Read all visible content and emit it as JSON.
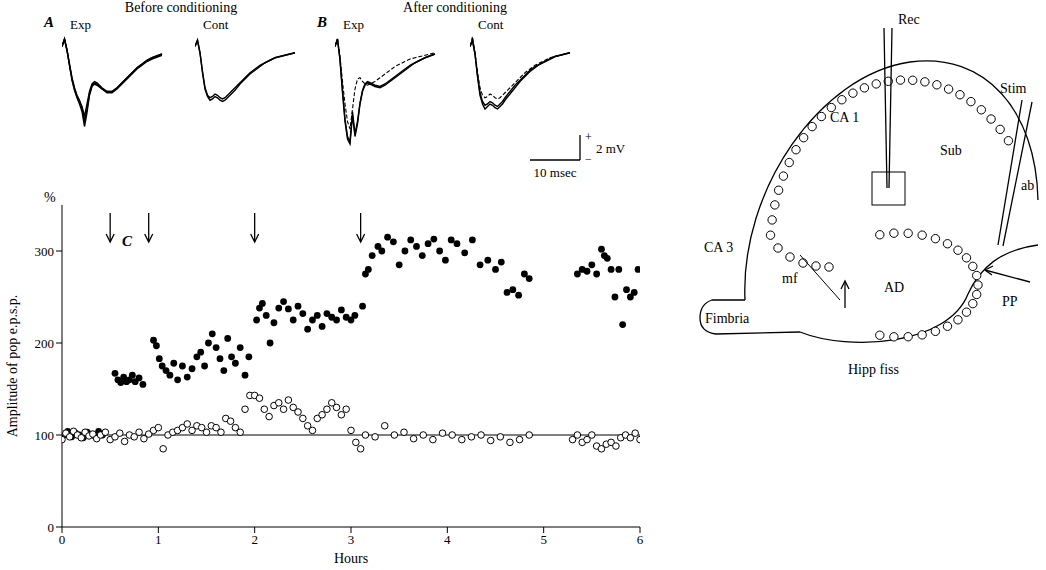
{
  "chart_data": [
    {
      "type": "line",
      "panel": "A",
      "title": "Before conditioning",
      "subtitle": "Exp",
      "tick_labels": false,
      "xlim": [
        0,
        21
      ],
      "ylim": [
        -8,
        1
      ],
      "x": [
        0,
        0.5,
        1,
        1.5,
        2,
        2.5,
        3,
        3.5,
        4,
        4.5,
        5,
        5.5,
        6,
        6.5,
        7,
        8,
        9,
        10,
        11,
        12,
        13,
        14,
        15,
        16,
        17,
        18,
        20
      ],
      "series": [
        {
          "color": "#000000",
          "line_style": "solid",
          "values": [
            0,
            0.6,
            -0.3,
            -1.5,
            -2.6,
            -3.4,
            -4.0,
            -4.4,
            -4.8,
            -5.6,
            -4.6,
            -3.6,
            -3.0,
            -2.8,
            -2.9,
            -3.3,
            -3.6,
            -3.6,
            -3.3,
            -2.9,
            -2.5,
            -2.1,
            -1.7,
            -1.4,
            -1.1,
            -0.9,
            -0.6
          ]
        },
        {
          "color": "#000000",
          "line_style": "solid",
          "values": [
            0,
            0.6,
            -0.3,
            -1.4,
            -2.5,
            -3.3,
            -3.9,
            -4.3,
            -4.9,
            -6.0,
            -5.0,
            -3.8,
            -3.1,
            -2.9,
            -3.0,
            -3.4,
            -3.6,
            -3.6,
            -3.3,
            -2.9,
            -2.5,
            -2.1,
            -1.7,
            -1.4,
            -1.1,
            -0.9,
            -0.6
          ]
        },
        {
          "color": "#000000",
          "line_style": "solid",
          "values": [
            0,
            0.6,
            -0.3,
            -1.5,
            -2.7,
            -3.5,
            -4.1,
            -4.6,
            -5.2,
            -6.4,
            -5.3,
            -3.9,
            -3.2,
            -3.0,
            -3.1,
            -3.4,
            -3.7,
            -3.7,
            -3.4,
            -3.0,
            -2.6,
            -2.2,
            -1.8,
            -1.5,
            -1.2,
            -1.0,
            -0.7
          ]
        }
      ]
    },
    {
      "type": "line",
      "subtitle": "Cont",
      "tick_labels": false,
      "xlim": [
        0,
        21
      ],
      "ylim": [
        -8,
        1
      ],
      "x": [
        0,
        0.5,
        1,
        1.5,
        2,
        2.5,
        3,
        3.5,
        4,
        4.5,
        5,
        5.5,
        6,
        6.5,
        7,
        8,
        9,
        10,
        11,
        12,
        13,
        14,
        15,
        16,
        17,
        18,
        20
      ],
      "series": [
        {
          "color": "#000000",
          "line_style": "solid",
          "values": [
            0,
            0.5,
            -0.5,
            -2.0,
            -3.3,
            -3.9,
            -4.1,
            -4.0,
            -3.8,
            -3.9,
            -4.1,
            -4.2,
            -4.1,
            -3.9,
            -3.7,
            -3.3,
            -2.9,
            -2.5,
            -2.1,
            -1.8,
            -1.5,
            -1.3,
            -1.1,
            -0.9,
            -0.8,
            -0.7,
            -0.5
          ]
        },
        {
          "color": "#000000",
          "line_style": "solid",
          "values": [
            0,
            0.5,
            -0.5,
            -2.1,
            -3.4,
            -4.0,
            -4.3,
            -4.2,
            -4.0,
            -4.1,
            -4.3,
            -4.4,
            -4.3,
            -4.1,
            -3.9,
            -3.5,
            -3.0,
            -2.6,
            -2.2,
            -1.9,
            -1.6,
            -1.3,
            -1.1,
            -0.9,
            -0.8,
            -0.7,
            -0.5
          ]
        }
      ]
    },
    {
      "type": "line",
      "panel": "B",
      "title": "After conditioning",
      "subtitle": "Exp",
      "tick_labels": false,
      "xlim": [
        0,
        21
      ],
      "ylim": [
        -8,
        1
      ],
      "x": [
        0,
        0.5,
        1,
        1.5,
        2,
        2.5,
        3,
        3.5,
        4,
        4.5,
        5,
        5.5,
        6,
        6.5,
        7,
        8,
        9,
        10,
        11,
        12,
        13,
        14,
        15,
        16,
        17,
        18,
        20
      ],
      "series": [
        {
          "color": "#000000",
          "line_style": "solid",
          "values": [
            0,
            0.6,
            -1.0,
            -3.5,
            -5.8,
            -7.2,
            -7.6,
            -5.2,
            -7.0,
            -6.0,
            -4.5,
            -3.5,
            -3.0,
            -2.8,
            -2.9,
            -3.1,
            -3.2,
            -3.0,
            -2.7,
            -2.4,
            -2.1,
            -1.8,
            -1.5,
            -1.3,
            -1.1,
            -0.9,
            -0.6
          ]
        },
        {
          "color": "#000000",
          "line_style": "solid",
          "values": [
            0,
            0.6,
            -1.1,
            -3.7,
            -6.0,
            -7.4,
            -7.8,
            -5.5,
            -7.2,
            -6.2,
            -4.6,
            -3.6,
            -3.1,
            -2.9,
            -3.0,
            -3.2,
            -3.3,
            -3.1,
            -2.8,
            -2.5,
            -2.2,
            -1.9,
            -1.6,
            -1.3,
            -1.1,
            -0.9,
            -0.6
          ]
        },
        {
          "color": "#000000",
          "line_style": "dashed",
          "values": [
            0,
            0.6,
            -0.8,
            -2.8,
            -4.6,
            -6.0,
            -6.6,
            -5.0,
            -3.4,
            -2.6,
            -2.5,
            -2.8,
            -3.0,
            -3.1,
            -3.0,
            -2.8,
            -2.5,
            -2.2,
            -1.9,
            -1.6,
            -1.4,
            -1.2,
            -1.0,
            -0.9,
            -0.8,
            -0.7,
            -0.5
          ]
        }
      ]
    },
    {
      "type": "line",
      "subtitle": "Cont",
      "tick_labels": false,
      "xlim": [
        0,
        21
      ],
      "ylim": [
        -8,
        1
      ],
      "x": [
        0,
        0.5,
        1,
        1.5,
        2,
        2.5,
        3,
        3.5,
        4,
        4.5,
        5,
        5.5,
        6,
        6.5,
        7,
        8,
        9,
        10,
        11,
        12,
        13,
        14,
        15,
        16,
        17,
        18,
        20
      ],
      "series": [
        {
          "color": "#000000",
          "line_style": "solid",
          "values": [
            0,
            0.5,
            -0.6,
            -2.3,
            -3.7,
            -4.4,
            -4.7,
            -4.6,
            -4.4,
            -4.5,
            -4.7,
            -4.8,
            -4.6,
            -4.4,
            -4.1,
            -3.6,
            -3.1,
            -2.7,
            -2.3,
            -1.9,
            -1.6,
            -1.4,
            -1.2,
            -1.0,
            -0.8,
            -0.7,
            -0.5
          ]
        },
        {
          "color": "#000000",
          "line_style": "solid",
          "values": [
            0,
            0.5,
            -0.6,
            -2.4,
            -3.9,
            -4.6,
            -5.0,
            -4.8,
            -4.6,
            -4.7,
            -4.9,
            -5.0,
            -4.8,
            -4.6,
            -4.3,
            -3.8,
            -3.3,
            -2.8,
            -2.4,
            -2.0,
            -1.7,
            -1.4,
            -1.2,
            -1.0,
            -0.8,
            -0.7,
            -0.5
          ]
        },
        {
          "color": "#000000",
          "line_style": "dashed",
          "values": [
            0,
            0.8,
            -0.5,
            -2.0,
            -3.3,
            -3.9,
            -4.1,
            -4.0,
            -3.8,
            -3.9,
            -4.1,
            -4.2,
            -4.1,
            -3.9,
            -3.7,
            -3.3,
            -2.9,
            -2.5,
            -2.1,
            -1.8,
            -1.5,
            -1.3,
            -1.1,
            -0.9,
            -0.8,
            -0.7,
            -0.5
          ]
        }
      ]
    },
    {
      "type": "scatter",
      "panel": "C",
      "xlabel": "Hours",
      "ylabel": "Amplitude of pop e.p.s.p.",
      "ylabel_unit": "%",
      "xlim": [
        0,
        6
      ],
      "xticks": [
        0,
        1,
        2,
        3,
        4,
        5,
        6
      ],
      "ylim": [
        0,
        350
      ],
      "yticks": [
        0,
        100,
        200,
        300
      ],
      "baseline": 100,
      "conditioning_times": [
        0.5,
        0.9,
        2.0,
        3.1
      ],
      "series": [
        {
          "color": "#000000",
          "marker": "circle",
          "x": [
            0.02,
            0.06,
            0.1,
            0.14,
            0.18,
            0.22,
            0.26,
            0.3,
            0.34,
            0.38,
            0.42,
            0.55,
            0.58,
            0.61,
            0.64,
            0.67,
            0.7,
            0.73,
            0.76,
            0.8,
            0.84,
            0.95,
            0.98,
            1.01,
            1.04,
            1.08,
            1.12,
            1.16,
            1.2,
            1.25,
            1.3,
            1.35,
            1.4,
            1.44,
            1.48,
            1.52,
            1.56,
            1.6,
            1.64,
            1.68,
            1.72,
            1.76,
            1.8,
            1.85,
            1.9,
            1.94,
            2.02,
            2.05,
            2.08,
            2.12,
            2.16,
            2.2,
            2.25,
            2.3,
            2.35,
            2.4,
            2.45,
            2.5,
            2.55,
            2.6,
            2.65,
            2.7,
            2.75,
            2.8,
            2.85,
            2.9,
            2.95,
            3.0,
            3.04,
            3.12,
            3.15,
            3.18,
            3.22,
            3.28,
            3.32,
            3.38,
            3.44,
            3.5,
            3.56,
            3.62,
            3.68,
            3.74,
            3.8,
            3.86,
            3.92,
            3.98,
            4.04,
            4.1,
            4.18,
            4.26,
            4.34,
            4.42,
            4.5,
            4.56,
            4.62,
            4.68,
            4.74,
            4.8,
            4.85,
            5.35,
            5.4,
            5.45,
            5.5,
            5.55,
            5.6,
            5.63,
            5.66,
            5.7,
            5.74,
            5.78,
            5.82,
            5.86,
            5.9,
            5.94,
            5.98
          ],
          "values": [
            100,
            104,
            98,
            102,
            100,
            97,
            103,
            101,
            99,
            104,
            100,
            167,
            160,
            157,
            163,
            158,
            160,
            165,
            158,
            162,
            155,
            203,
            197,
            183,
            175,
            170,
            165,
            178,
            160,
            175,
            163,
            172,
            185,
            190,
            175,
            200,
            210,
            195,
            183,
            170,
            205,
            185,
            178,
            195,
            165,
            185,
            225,
            238,
            243,
            230,
            200,
            222,
            238,
            245,
            237,
            225,
            240,
            232,
            215,
            225,
            230,
            218,
            232,
            228,
            225,
            236,
            228,
            225,
            230,
            240,
            275,
            280,
            295,
            305,
            300,
            315,
            310,
            285,
            300,
            312,
            305,
            295,
            308,
            313,
            300,
            290,
            312,
            308,
            298,
            312,
            285,
            290,
            280,
            288,
            255,
            258,
            252,
            275,
            270,
            275,
            280,
            278,
            285,
            275,
            302,
            295,
            292,
            280,
            250,
            280,
            220,
            258,
            250,
            255,
            280
          ]
        },
        {
          "color": "#000000",
          "marker": "open_circle",
          "x": [
            0.0,
            0.04,
            0.08,
            0.12,
            0.16,
            0.2,
            0.24,
            0.28,
            0.32,
            0.36,
            0.4,
            0.45,
            0.5,
            0.55,
            0.6,
            0.65,
            0.7,
            0.75,
            0.8,
            0.85,
            0.9,
            0.95,
            1.0,
            1.05,
            1.1,
            1.15,
            1.2,
            1.25,
            1.3,
            1.35,
            1.4,
            1.45,
            1.5,
            1.55,
            1.6,
            1.65,
            1.7,
            1.75,
            1.8,
            1.85,
            1.9,
            1.95,
            2.0,
            2.05,
            2.1,
            2.15,
            2.2,
            2.25,
            2.3,
            2.35,
            2.4,
            2.45,
            2.5,
            2.55,
            2.6,
            2.65,
            2.7,
            2.75,
            2.8,
            2.85,
            2.9,
            2.95,
            3.0,
            3.05,
            3.1,
            3.15,
            3.25,
            3.35,
            3.45,
            3.55,
            3.65,
            3.75,
            3.85,
            3.95,
            4.05,
            4.15,
            4.25,
            4.35,
            4.45,
            4.55,
            4.65,
            4.75,
            4.85,
            5.3,
            5.35,
            5.4,
            5.45,
            5.5,
            5.55,
            5.6,
            5.65,
            5.7,
            5.75,
            5.8,
            5.85,
            5.9,
            5.95,
            6.0
          ],
          "values": [
            95,
            102,
            98,
            104,
            100,
            97,
            103,
            99,
            101,
            96,
            100,
            103,
            95,
            98,
            102,
            93,
            100,
            98,
            103,
            96,
            101,
            105,
            108,
            85,
            100,
            103,
            105,
            108,
            112,
            105,
            110,
            108,
            103,
            110,
            108,
            103,
            118,
            115,
            108,
            103,
            128,
            143,
            143,
            140,
            128,
            120,
            132,
            135,
            128,
            138,
            130,
            125,
            118,
            110,
            105,
            118,
            122,
            128,
            135,
            130,
            122,
            128,
            105,
            92,
            85,
            100,
            98,
            110,
            100,
            103,
            96,
            100,
            95,
            102,
            100,
            95,
            98,
            100,
            94,
            98,
            92,
            95,
            100,
            95,
            100,
            92,
            95,
            100,
            88,
            85,
            90,
            92,
            88,
            97,
            100,
            97,
            102,
            95
          ]
        }
      ]
    }
  ],
  "scale_bar": {
    "x": 10,
    "y": 2,
    "x_label": "10 msec",
    "y_label": "2 mV",
    "plus": "+",
    "minus": "−"
  },
  "diagram": {
    "labels": {
      "rec": "Rec",
      "stim": "Stim",
      "ca1": "CA 1",
      "ca3": "CA 3",
      "sub": "Sub",
      "ab": "ab",
      "mf": "mf",
      "ad": "AD",
      "pp": "PP",
      "fimbria": "Fimbria",
      "hipp_fiss": "Hipp fiss"
    }
  }
}
